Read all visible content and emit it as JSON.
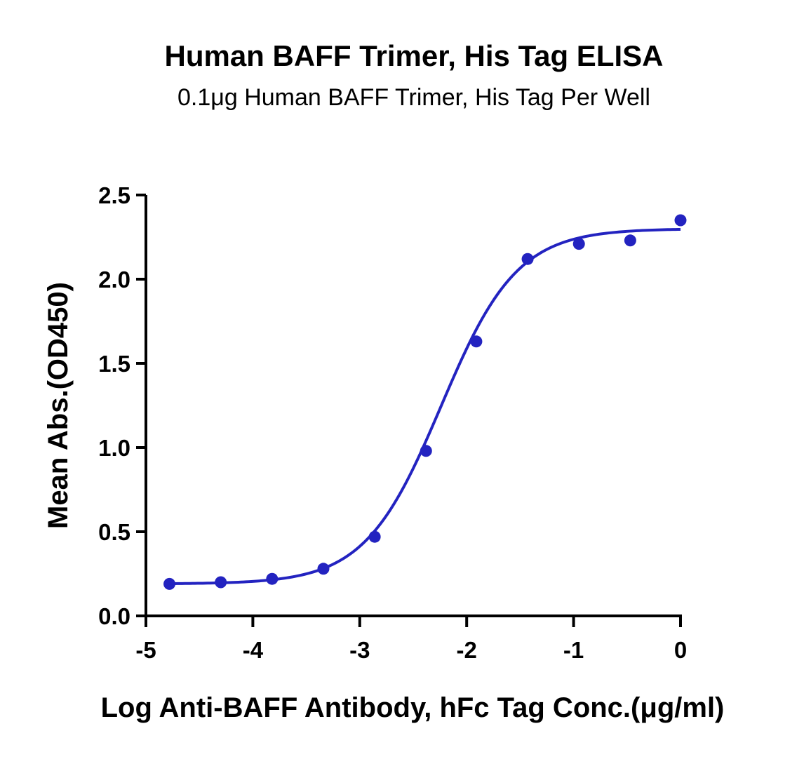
{
  "chart_data": {
    "type": "scatter",
    "title": "Human BAFF Trimer, His Tag ELISA",
    "subtitle": "0.1μg Human BAFF Trimer, His Tag Per Well",
    "xlabel": "Log Anti-BAFF Antibody, hFc Tag Conc.(μg/ml)",
    "ylabel": "Mean Abs.(OD450)",
    "xlim": [
      -5,
      0
    ],
    "ylim": [
      0.0,
      2.5
    ],
    "x_ticks": [
      -5,
      -4,
      -3,
      -2,
      -1,
      0
    ],
    "x_tick_labels": [
      "-5",
      "-4",
      "-3",
      "-2",
      "-1",
      "0"
    ],
    "y_ticks": [
      0.0,
      0.5,
      1.0,
      1.5,
      2.0,
      2.5
    ],
    "y_tick_labels": [
      "0.0",
      "0.5",
      "1.0",
      "1.5",
      "2.0",
      "2.5"
    ],
    "grid": false,
    "legend": "none",
    "color": "#2323c0",
    "series": [
      {
        "x": [
          -4.78,
          -4.3,
          -3.82,
          -3.34,
          -2.86,
          -2.38,
          -1.91,
          -1.43,
          -0.95,
          -0.47,
          0.0
        ],
        "y": [
          0.19,
          0.2,
          0.22,
          0.28,
          0.47,
          0.98,
          1.63,
          2.12,
          2.21,
          2.23,
          2.35
        ]
      }
    ],
    "fit_curve": {
      "type": "4PL",
      "bottom": 0.19,
      "top": 2.3,
      "log_ec50": -2.24,
      "hill_slope": 1.22
    }
  }
}
